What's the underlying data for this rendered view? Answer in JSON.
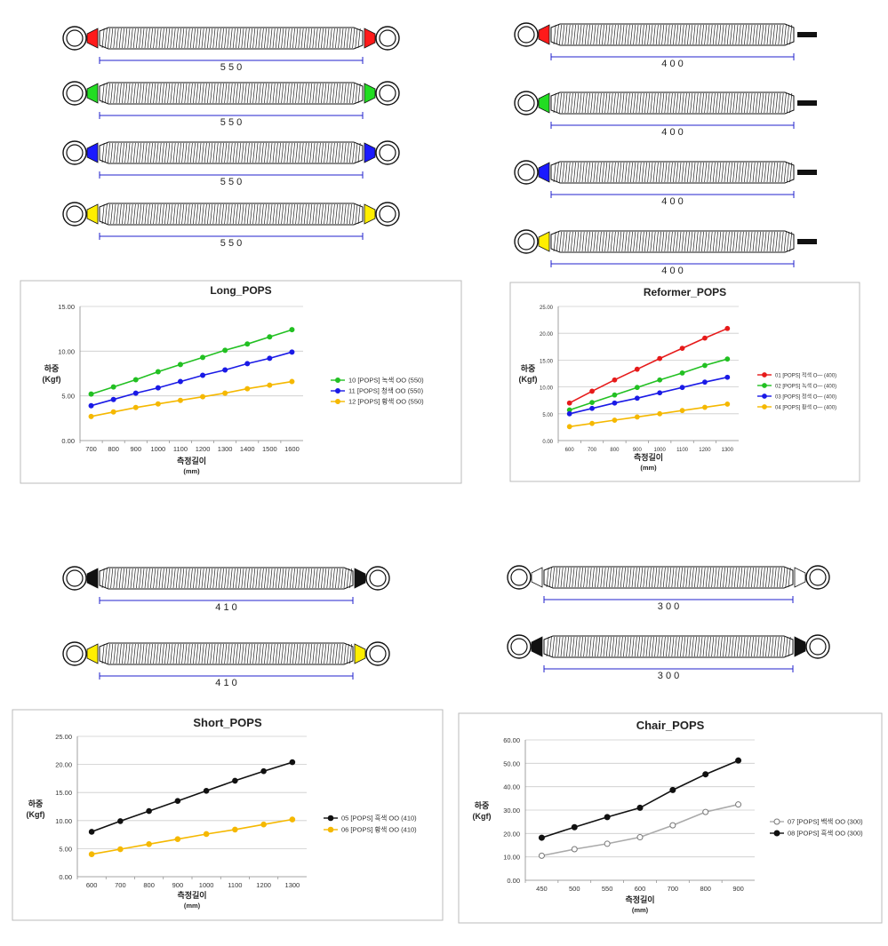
{
  "springs": {
    "long": [
      {
        "label": "5 5 0",
        "color": "#ff1a1a",
        "both_loops": true
      },
      {
        "label": "5 5 0",
        "color": "#22dd22",
        "both_loops": true
      },
      {
        "label": "5 5 0",
        "color": "#1a1aff",
        "both_loops": true
      },
      {
        "label": "5 5 0",
        "color": "#ffee00",
        "both_loops": true
      }
    ],
    "reformer": [
      {
        "label": "4 0 0",
        "color": "#ff1a1a",
        "both_loops": false
      },
      {
        "label": "4 0 0",
        "color": "#22dd22",
        "both_loops": false
      },
      {
        "label": "4 0 0",
        "color": "#1a1aff",
        "both_loops": false
      },
      {
        "label": "4 0 0",
        "color": "#ffee00",
        "both_loops": false
      }
    ],
    "short": [
      {
        "label": "4 1 0",
        "color": "#111111",
        "both_loops": true
      },
      {
        "label": "4 1 0",
        "color": "#ffee00",
        "both_loops": true
      }
    ],
    "chair": [
      {
        "label": "3 0 0",
        "color": "#ffffff",
        "both_loops": true
      },
      {
        "label": "3 0 0",
        "color": "#111111",
        "both_loops": true
      }
    ]
  },
  "chart_data": [
    {
      "type": "line",
      "title": "Long_POPS",
      "ylabel": [
        "하중",
        "(Kgf)"
      ],
      "xlabel": [
        "측정길이",
        "(mm)"
      ],
      "x": [
        700,
        800,
        900,
        1000,
        1100,
        1200,
        1300,
        1400,
        1500,
        1600
      ],
      "ylim": [
        0,
        15
      ],
      "yticks": [
        "0.00",
        "5.00",
        "10.00",
        "15.00"
      ],
      "grid": true,
      "legend": "right",
      "series": [
        {
          "name": "10 [POPS] 녹색 OO (550)",
          "color": "#22c022",
          "values": [
            5.2,
            6.0,
            6.8,
            7.7,
            8.5,
            9.3,
            10.1,
            10.8,
            11.6,
            12.4
          ]
        },
        {
          "name": "11 [POPS] 청색 OO (550)",
          "color": "#1a1ae6",
          "values": [
            3.9,
            4.6,
            5.3,
            5.9,
            6.6,
            7.3,
            7.9,
            8.6,
            9.2,
            9.9
          ]
        },
        {
          "name": "12 [POPS] 황색 OO (550)",
          "color": "#f5b800",
          "values": [
            2.7,
            3.2,
            3.7,
            4.1,
            4.5,
            4.9,
            5.3,
            5.8,
            6.2,
            6.6
          ]
        }
      ]
    },
    {
      "type": "line",
      "title": "Reformer_POPS",
      "ylabel": [
        "하중",
        "(Kgf)"
      ],
      "xlabel": [
        "측정길이",
        "(mm)"
      ],
      "x": [
        600,
        700,
        800,
        900,
        1000,
        1100,
        1200,
        1300
      ],
      "ylim": [
        0,
        25
      ],
      "yticks": [
        "0.00",
        "5.00",
        "10.00",
        "15.00",
        "20.00",
        "25.00"
      ],
      "grid": true,
      "legend": "right",
      "series": [
        {
          "name": "01 [POPS] 적색 O— (400)",
          "color": "#e61a1a",
          "values": [
            7.0,
            9.2,
            11.3,
            13.3,
            15.3,
            17.2,
            19.1,
            20.9
          ]
        },
        {
          "name": "02 [POPS] 녹색 O— (400)",
          "color": "#22c022",
          "values": [
            5.7,
            7.1,
            8.5,
            9.9,
            11.3,
            12.6,
            14.0,
            15.2
          ]
        },
        {
          "name": "03 [POPS] 청색 O— (400)",
          "color": "#1a1ae6",
          "values": [
            5.0,
            6.0,
            7.0,
            7.9,
            8.9,
            9.9,
            10.9,
            11.8
          ]
        },
        {
          "name": "04 [POPS] 황색 O— (400)",
          "color": "#f5b800",
          "values": [
            2.6,
            3.2,
            3.8,
            4.4,
            5.0,
            5.6,
            6.2,
            6.8
          ]
        }
      ]
    },
    {
      "type": "line",
      "title": "Short_POPS",
      "ylabel": [
        "하중",
        "(Kgf)"
      ],
      "xlabel": [
        "측정길이",
        "(mm)"
      ],
      "x": [
        600,
        700,
        800,
        900,
        1000,
        1100,
        1200,
        1300
      ],
      "ylim": [
        0,
        25
      ],
      "yticks": [
        "0.00",
        "5.00",
        "10.00",
        "15.00",
        "20.00",
        "25.00"
      ],
      "grid": true,
      "legend": "right",
      "series": [
        {
          "name": "05 [POPS] 흑색 OO (410)",
          "color": "#111111",
          "values": [
            8.0,
            9.9,
            11.7,
            13.5,
            15.3,
            17.1,
            18.8,
            20.4
          ]
        },
        {
          "name": "06 [POPS] 황색 OO (410)",
          "color": "#f5b800",
          "values": [
            4.0,
            4.9,
            5.8,
            6.7,
            7.6,
            8.4,
            9.3,
            10.2
          ]
        }
      ]
    },
    {
      "type": "line",
      "title": "Chair_POPS",
      "ylabel": [
        "하중",
        "(Kgf)"
      ],
      "xlabel": [
        "측정길이",
        "(mm)"
      ],
      "x": [
        450,
        500,
        550,
        600,
        700,
        800,
        900
      ],
      "ylim": [
        0,
        60
      ],
      "yticks": [
        "0.00",
        "10.00",
        "20.00",
        "30.00",
        "40.00",
        "50.00",
        "60.00"
      ],
      "grid": true,
      "legend": "right",
      "series": [
        {
          "name": "07 [POPS] 백색 OO (300)",
          "color": "#aaaaaa",
          "hollow": true,
          "values": [
            10.5,
            13.3,
            15.6,
            18.4,
            23.5,
            29.2,
            32.4
          ]
        },
        {
          "name": "08 [POPS] 흑색 OO (300)",
          "color": "#111111",
          "values": [
            18.2,
            22.7,
            27.0,
            31.0,
            38.6,
            45.3,
            51.2
          ]
        }
      ]
    }
  ]
}
